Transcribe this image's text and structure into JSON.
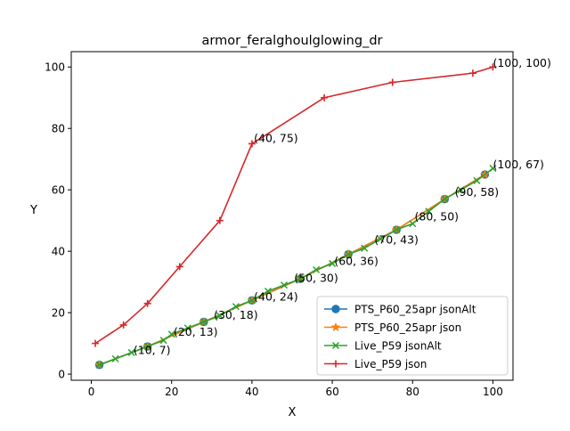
{
  "chart_data": {
    "type": "line",
    "title": "armor_feralghoulglowing_dr",
    "xlabel": "X",
    "ylabel": "Y",
    "xlim": [
      -5,
      105
    ],
    "ylim": [
      -2,
      105
    ],
    "xticks": [
      0,
      20,
      40,
      60,
      80,
      100
    ],
    "yticks": [
      0,
      20,
      40,
      60,
      80,
      100
    ],
    "grid": false,
    "legend_position": "lower-right",
    "series": [
      {
        "name": "PTS_P60_25apr jsonAlt",
        "color": "#1f77b4",
        "marker": "circle",
        "x": [
          2,
          14,
          28,
          40,
          52,
          64,
          76,
          88,
          98
        ],
        "y": [
          3,
          9,
          17,
          24,
          31,
          39,
          47,
          57,
          65
        ]
      },
      {
        "name": "PTS_P60_25apr json",
        "color": "#ff7f0e",
        "marker": "star",
        "x": [
          2,
          14,
          28,
          40,
          52,
          64,
          76,
          88,
          98
        ],
        "y": [
          3,
          9,
          17,
          24,
          31,
          39,
          47,
          57,
          65
        ]
      },
      {
        "name": "Live_P59 jsonAlt",
        "color": "#2ca02c",
        "marker": "x",
        "x": [
          2,
          6,
          10,
          14,
          18,
          20,
          24,
          28,
          32,
          36,
          40,
          44,
          48,
          52,
          56,
          60,
          64,
          68,
          72,
          76,
          80,
          84,
          88,
          92,
          96,
          100
        ],
        "y": [
          3,
          5,
          7,
          9,
          11,
          13,
          15,
          17,
          19,
          22,
          24,
          27,
          29,
          31,
          34,
          36,
          39,
          41,
          44,
          47,
          49,
          53,
          57,
          60,
          63,
          67
        ]
      },
      {
        "name": "Live_P59 json",
        "color": "#d62728",
        "marker": "plus",
        "x": [
          1,
          8,
          14,
          22,
          32,
          40,
          58,
          75,
          95,
          100
        ],
        "y": [
          10,
          16,
          23,
          35,
          50,
          75,
          90,
          95,
          98,
          100
        ]
      }
    ],
    "annotations": [
      {
        "text": "(10, 7)",
        "x": 10.5,
        "y": 6.5
      },
      {
        "text": "(20, 13)",
        "x": 20.5,
        "y": 12.5
      },
      {
        "text": "(30, 18)",
        "x": 30.5,
        "y": 18
      },
      {
        "text": "(40, 24)",
        "x": 40.5,
        "y": 24
      },
      {
        "text": "(50, 30)",
        "x": 50.5,
        "y": 30
      },
      {
        "text": "(60, 36)",
        "x": 60.5,
        "y": 35.5
      },
      {
        "text": "(70, 43)",
        "x": 70.5,
        "y": 42.5
      },
      {
        "text": "(80, 50)",
        "x": 80.5,
        "y": 50
      },
      {
        "text": "(90, 58)",
        "x": 90.5,
        "y": 58
      },
      {
        "text": "(100, 67)",
        "x": 100,
        "y": 67
      },
      {
        "text": "(40, 75)",
        "x": 40.5,
        "y": 75.5
      },
      {
        "text": "(100, 100)",
        "x": 100,
        "y": 100
      }
    ]
  }
}
